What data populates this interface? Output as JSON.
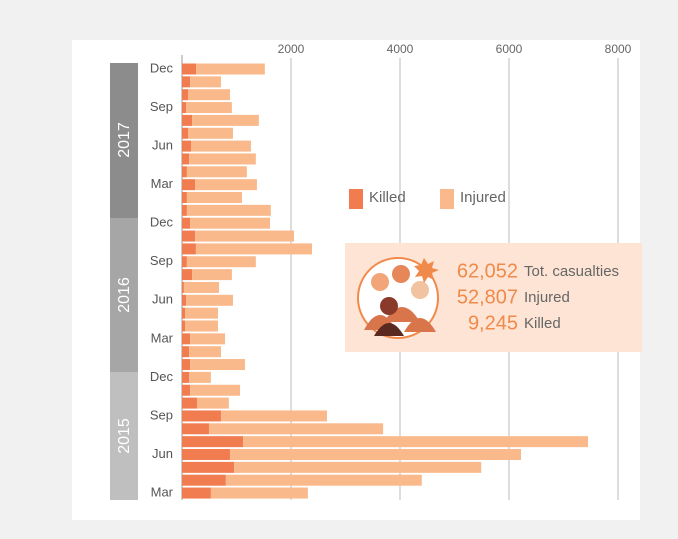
{
  "chart_data": {
    "type": "stacked-barh",
    "categories": [
      "Mar",
      null,
      null,
      "Jun",
      null,
      null,
      "Sep",
      null,
      null,
      "Dec",
      null,
      null,
      "Mar",
      null,
      null,
      "Jun",
      null,
      null,
      "Sep",
      null,
      null,
      "Dec",
      null,
      null,
      "Mar",
      null,
      null,
      "Jun",
      null,
      null,
      "Sep",
      null,
      null,
      "Dec"
    ],
    "year_labels": [
      "2017",
      "2016",
      "2015"
    ],
    "series": [
      {
        "name": "Killed",
        "color": "#f07c50",
        "values": [
          530,
          805,
          955,
          880,
          1120,
          495,
          715,
          275,
          150,
          130,
          150,
          130,
          150,
          55,
          55,
          75,
          35,
          185,
          90,
          255,
          240,
          150,
          90,
          90,
          240,
          90,
          130,
          165,
          110,
          185,
          75,
          110,
          150,
          260
        ]
      },
      {
        "name": "Injured",
        "color": "#f9b98a",
        "values": [
          1780,
          3595,
          4535,
          5340,
          6330,
          3195,
          1945,
          585,
          915,
          400,
          1005,
          585,
          640,
          605,
          605,
          860,
          645,
          730,
          1265,
          2130,
          1815,
          1465,
          1540,
          1010,
          1135,
          1100,
          1225,
          1100,
          825,
          1225,
          840,
          770,
          565,
          1260
        ]
      }
    ],
    "xlim": [
      0,
      8000
    ],
    "xticks": [
      2000,
      4000,
      6000,
      8000
    ],
    "grid": true,
    "summary": [
      {
        "value": 62052,
        "label": "62,052",
        "text": "Tot. casualties"
      },
      {
        "value": 52807,
        "label": "52,807",
        "text": "Injured"
      },
      {
        "value": 9245,
        "label": "9,245",
        "text": "Killed"
      }
    ]
  }
}
